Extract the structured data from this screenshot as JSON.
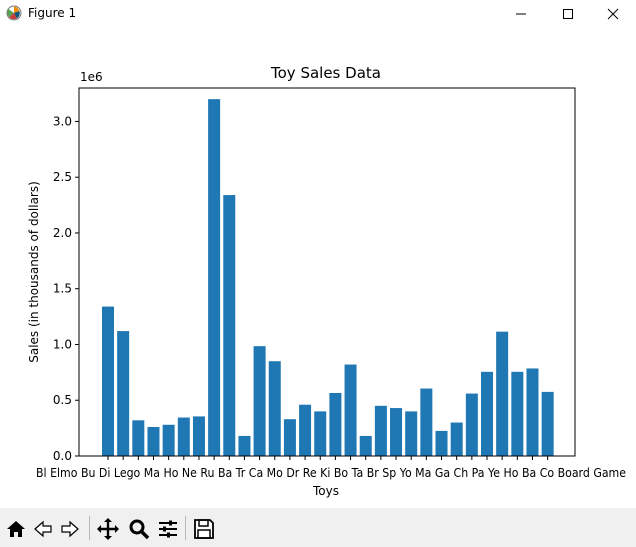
{
  "window": {
    "title": "Figure 1",
    "minimize_icon": "minimize-icon",
    "maximize_icon": "maximize-icon",
    "close_icon": "close-icon"
  },
  "toolbar": {
    "items": [
      {
        "name": "home-button",
        "icon": "home-icon"
      },
      {
        "name": "back-button",
        "icon": "back-arrow-icon"
      },
      {
        "name": "forward-button",
        "icon": "forward-arrow-icon"
      },
      {
        "name": "pan-button",
        "icon": "move-icon"
      },
      {
        "name": "zoom-button",
        "icon": "magnifier-icon"
      },
      {
        "name": "configure-subplots-button",
        "icon": "sliders-icon"
      },
      {
        "name": "save-button",
        "icon": "floppy-icon"
      }
    ]
  },
  "colors": {
    "bar": "#1f77b4",
    "axes": "#000000",
    "background": "#ffffff",
    "toolbar": "#f0f0f0"
  },
  "chart_data": {
    "type": "bar",
    "title": "Toy Sales Data",
    "xlabel": "Toys",
    "ylabel": "Sales (in thousands of dollars)",
    "offset_label": "1e6",
    "ylim": [
      0,
      3300000
    ],
    "yticks": [
      0,
      500000,
      1000000,
      1500000,
      2000000,
      2500000,
      3000000
    ],
    "ytick_labels": [
      "0.0",
      "0.5",
      "1.0",
      "1.5",
      "2.0",
      "2.5",
      "3.0"
    ],
    "values": [
      1340000,
      1120000,
      320000,
      260000,
      280000,
      345000,
      355000,
      3200000,
      2340000,
      180000,
      985000,
      850000,
      330000,
      460000,
      400000,
      565000,
      820000,
      180000,
      450000,
      430000,
      400000,
      605000,
      225000,
      300000,
      560000,
      755000,
      1115000,
      755000,
      785000,
      575000
    ],
    "grid": false
  },
  "chart_axis": {
    "visible_tick_text": "Bl Elmo Bu Di Lego Ma Ho Ne Ru Ba Tr Ca Mo Dr Re Ki Bo Ta Br Sp Yo Ma Ga Ch Pa Ye Ho Ba Co Board Game"
  }
}
